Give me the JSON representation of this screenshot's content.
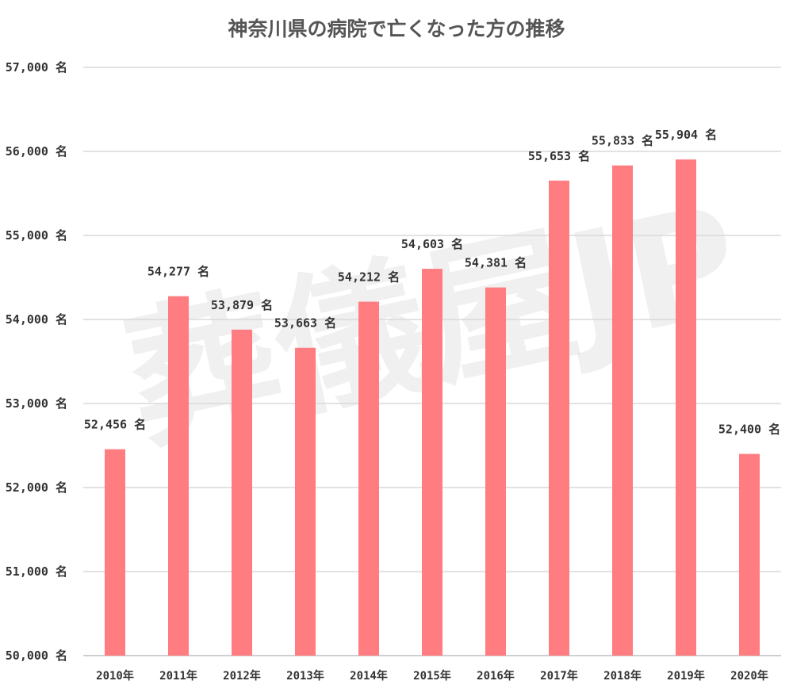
{
  "chart_data": {
    "type": "bar",
    "title": "神奈川県の病院で亡くなった方の推移",
    "categories": [
      "2010年",
      "2011年",
      "2012年",
      "2013年",
      "2014年",
      "2015年",
      "2016年",
      "2017年",
      "2018年",
      "2019年",
      "2020年"
    ],
    "values": [
      52456,
      54277,
      53879,
      53663,
      54212,
      54603,
      54381,
      55653,
      55833,
      55904,
      52400
    ],
    "data_labels": [
      "52,456 名",
      "54,277 名",
      "53,879 名",
      "53,663 名",
      "54,212 名",
      "54,603 名",
      "54,381 名",
      "55,653 名",
      "55,833 名",
      "55,904 名",
      "52,400 名"
    ],
    "yticks": [
      50000,
      51000,
      52000,
      53000,
      54000,
      55000,
      56000,
      57000
    ],
    "ytick_labels": [
      "50,000 名",
      "51,000 名",
      "52,000 名",
      "53,000 名",
      "54,000 名",
      "55,000 名",
      "56,000 名",
      "57,000 名"
    ],
    "ylim": [
      50000,
      57000
    ],
    "xlabel": "",
    "ylabel": "",
    "unit": "名",
    "grid": true,
    "bar_color": "#ff7c80",
    "watermark": "葬儀屋JP"
  }
}
